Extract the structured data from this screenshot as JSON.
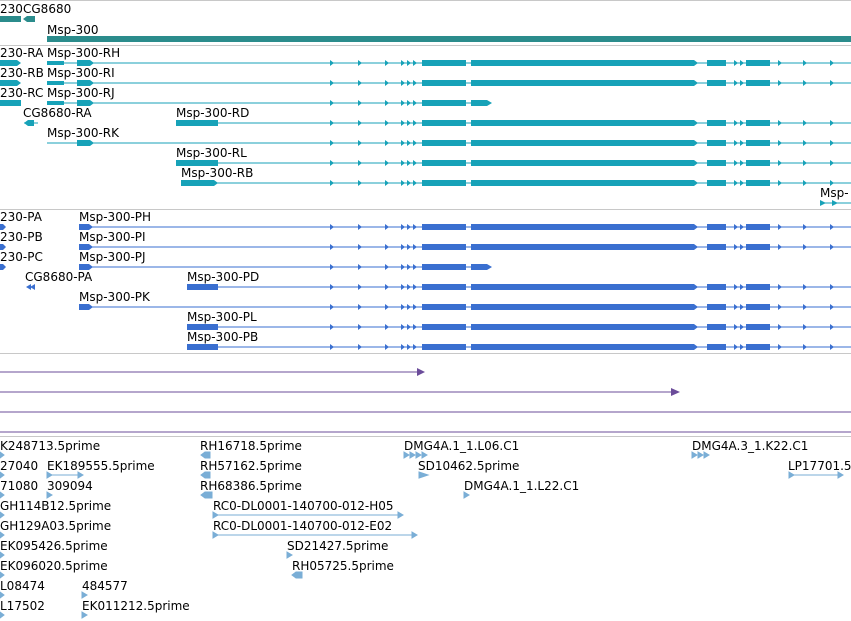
{
  "genes": [
    {
      "label": "230",
      "color": "#2b8c8c"
    },
    {
      "label": "CG8680",
      "color": "#2b8c8c"
    },
    {
      "label": "Msp-300",
      "color": "#2b8c8c"
    }
  ],
  "transcripts": [
    {
      "label": "230-RA"
    },
    {
      "label": "Msp-300-RH"
    },
    {
      "label": "230-RB"
    },
    {
      "label": "Msp-300-RI"
    },
    {
      "label": "230-RC"
    },
    {
      "label": "Msp-300-RJ"
    },
    {
      "label": "CG8680-RA"
    },
    {
      "label": "Msp-300-RD"
    },
    {
      "label": "Msp-300-RK"
    },
    {
      "label": "Msp-300-RL"
    },
    {
      "label": "Msp-300-RB"
    },
    {
      "label": "Msp-"
    }
  ],
  "proteins": [
    {
      "label": "230-PA"
    },
    {
      "label": "Msp-300-PH"
    },
    {
      "label": "230-PB"
    },
    {
      "label": "Msp-300-PI"
    },
    {
      "label": "230-PC"
    },
    {
      "label": "Msp-300-PJ"
    },
    {
      "label": "CG8680-PA"
    },
    {
      "label": "Msp-300-PD"
    },
    {
      "label": "Msp-300-PK"
    },
    {
      "label": "Msp-300-PL"
    },
    {
      "label": "Msp-300-PB"
    }
  ],
  "ests": [
    {
      "label": "K248713.5prime"
    },
    {
      "label": "RH16718.5prime"
    },
    {
      "label": "DMG4A.1_1.L06.C1"
    },
    {
      "label": "DMG4A.3_1.K22.C1"
    },
    {
      "label": "27040"
    },
    {
      "label": "EK189555.5prime"
    },
    {
      "label": "RH57162.5prime"
    },
    {
      "label": "SD10462.5prime"
    },
    {
      "label": "LP17701.5"
    },
    {
      "label": "71080"
    },
    {
      "label": "309094"
    },
    {
      "label": "RH68386.5prime"
    },
    {
      "label": "DMG4A.1_1.L22.C1"
    },
    {
      "label": "GH114B12.5prime"
    },
    {
      "label": "RC0-DL0001-140700-012-H05"
    },
    {
      "label": "GH129A03.5prime"
    },
    {
      "label": "RC0-DL0001-140700-012-E02"
    },
    {
      "label": "EK095426.5prime"
    },
    {
      "label": "SD21427.5prime"
    },
    {
      "label": "EK096020.5prime"
    },
    {
      "label": "RH05725.5prime"
    },
    {
      "label": "L08474"
    },
    {
      "label": "484577"
    },
    {
      "label": "L17502"
    },
    {
      "label": "EK011212.5prime"
    }
  ],
  "colors": {
    "gene": "#2b8c8c",
    "transcript": "#17a2b8",
    "protein": "#3a6fd0",
    "repeat": "#6b4c9a",
    "est": "#7aaed6",
    "separator": "#c8c8c8"
  }
}
